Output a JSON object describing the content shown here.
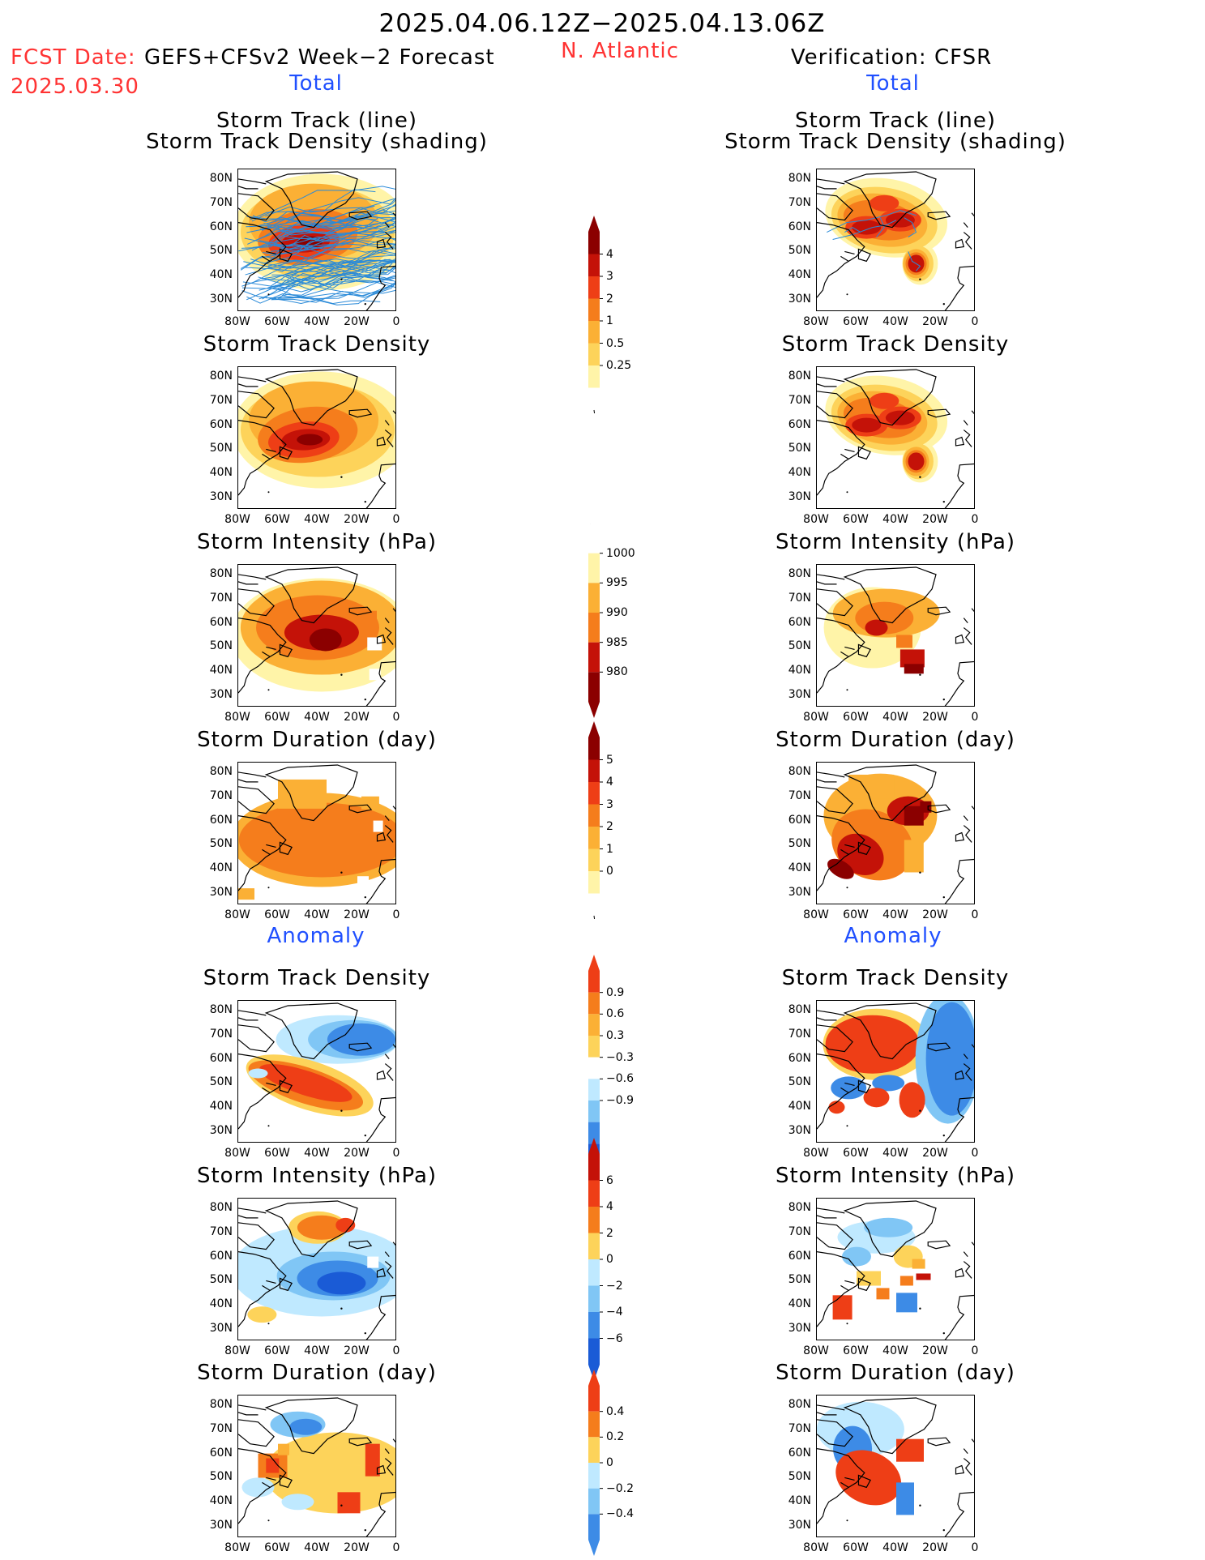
{
  "header": {
    "period": "2025.04.06.12Z−2025.04.13.06Z",
    "fcst_date_label": "FCST Date:",
    "forecast_name": "GEFS+CFSv2 Week−2 Forecast",
    "fcst_date": "2025.03.30",
    "region": "N. Atlantic",
    "verification": "Verification: CFSR",
    "left_section": "Total",
    "right_section": "Total",
    "anomaly_left": "Anomaly",
    "anomaly_right": "Anomaly"
  },
  "colors": {
    "yellow_light": "#fff4a8",
    "yellow": "#fdd35a",
    "orange_light": "#fbb035",
    "orange": "#f57d1c",
    "red_orange": "#ee3e16",
    "red": "#c41208",
    "dark_red": "#8b0000",
    "light_blue": "#bfe9ff",
    "mid_blue": "#80c6f5",
    "blue": "#3d8be6",
    "dark_blue": "#1a5bd6",
    "track_line": "#2a8ad8",
    "land_outline": "#000000"
  },
  "chart_data": [
    {
      "type": "heatmap",
      "title": "Storm Track (line)",
      "subtitle": "Storm Track Density (shading)",
      "column": "forecast",
      "section": "Total",
      "x_ticks": [
        "80W",
        "60W",
        "40W",
        "20W",
        "0"
      ],
      "y_ticks": [
        "80N",
        "70N",
        "60N",
        "50N",
        "40N",
        "30N"
      ],
      "xlim": [
        -80,
        0
      ],
      "ylim": [
        25,
        84
      ],
      "colorbar": "density",
      "pattern": "fc_density",
      "tracks": "many"
    },
    {
      "type": "heatmap",
      "title": "Storm Track Density",
      "column": "forecast",
      "section": "Total",
      "x_ticks": [
        "80W",
        "60W",
        "40W",
        "20W",
        "0"
      ],
      "y_ticks": [
        "80N",
        "70N",
        "60N",
        "50N",
        "40N",
        "30N"
      ],
      "xlim": [
        -80,
        0
      ],
      "ylim": [
        25,
        84
      ],
      "colorbar": "density",
      "pattern": "fc_density"
    },
    {
      "type": "heatmap",
      "title": "Storm Intensity (hPa)",
      "column": "forecast",
      "section": "Total",
      "x_ticks": [
        "80W",
        "60W",
        "40W",
        "20W",
        "0"
      ],
      "y_ticks": [
        "80N",
        "70N",
        "60N",
        "50N",
        "40N",
        "30N"
      ],
      "xlim": [
        -80,
        0
      ],
      "ylim": [
        25,
        84
      ],
      "colorbar": "intensity",
      "pattern": "fc_intensity"
    },
    {
      "type": "heatmap",
      "title": "Storm Duration (day)",
      "column": "forecast",
      "section": "Total",
      "x_ticks": [
        "80W",
        "60W",
        "40W",
        "20W",
        "0"
      ],
      "y_ticks": [
        "80N",
        "70N",
        "60N",
        "50N",
        "40N",
        "30N"
      ],
      "xlim": [
        -80,
        0
      ],
      "ylim": [
        25,
        84
      ],
      "colorbar": "duration",
      "pattern": "fc_duration"
    },
    {
      "type": "heatmap",
      "title": "Storm Track Density",
      "column": "forecast",
      "section": "Anomaly",
      "x_ticks": [
        "80W",
        "60W",
        "40W",
        "20W",
        "0"
      ],
      "y_ticks": [
        "80N",
        "70N",
        "60N",
        "50N",
        "40N",
        "30N"
      ],
      "xlim": [
        -80,
        0
      ],
      "ylim": [
        25,
        84
      ],
      "colorbar": "density_anom",
      "pattern": "fc_density_anom"
    },
    {
      "type": "heatmap",
      "title": "Storm Intensity (hPa)",
      "column": "forecast",
      "section": "Anomaly",
      "x_ticks": [
        "80W",
        "60W",
        "40W",
        "20W",
        "0"
      ],
      "y_ticks": [
        "80N",
        "70N",
        "60N",
        "50N",
        "40N",
        "30N"
      ],
      "xlim": [
        -80,
        0
      ],
      "ylim": [
        25,
        84
      ],
      "colorbar": "intensity_anom",
      "pattern": "fc_intensity_anom"
    },
    {
      "type": "heatmap",
      "title": "Storm Duration (day)",
      "column": "forecast",
      "section": "Anomaly",
      "x_ticks": [
        "80W",
        "60W",
        "40W",
        "20W",
        "0"
      ],
      "y_ticks": [
        "80N",
        "70N",
        "60N",
        "50N",
        "40N",
        "30N"
      ],
      "xlim": [
        -80,
        0
      ],
      "ylim": [
        25,
        84
      ],
      "colorbar": "duration_anom",
      "pattern": "fc_duration_anom"
    },
    {
      "type": "heatmap",
      "title": "Storm Track (line)",
      "subtitle": "Storm Track Density (shading)",
      "column": "verification",
      "section": "Total",
      "x_ticks": [
        "80W",
        "60W",
        "40W",
        "20W",
        "0"
      ],
      "y_ticks": [
        "80N",
        "70N",
        "60N",
        "50N",
        "40N",
        "30N"
      ],
      "xlim": [
        -80,
        0
      ],
      "ylim": [
        25,
        84
      ],
      "colorbar": "density",
      "pattern": "vf_density",
      "tracks": "few"
    },
    {
      "type": "heatmap",
      "title": "Storm Track Density",
      "column": "verification",
      "section": "Total",
      "x_ticks": [
        "80W",
        "60W",
        "40W",
        "20W",
        "0"
      ],
      "y_ticks": [
        "80N",
        "70N",
        "60N",
        "50N",
        "40N",
        "30N"
      ],
      "xlim": [
        -80,
        0
      ],
      "ylim": [
        25,
        84
      ],
      "colorbar": "density",
      "pattern": "vf_density"
    },
    {
      "type": "heatmap",
      "title": "Storm Intensity (hPa)",
      "column": "verification",
      "section": "Total",
      "x_ticks": [
        "80W",
        "60W",
        "40W",
        "20W",
        "0"
      ],
      "y_ticks": [
        "80N",
        "70N",
        "60N",
        "50N",
        "40N",
        "30N"
      ],
      "xlim": [
        -80,
        0
      ],
      "ylim": [
        25,
        84
      ],
      "colorbar": "intensity",
      "pattern": "vf_intensity"
    },
    {
      "type": "heatmap",
      "title": "Storm Duration (day)",
      "column": "verification",
      "section": "Total",
      "x_ticks": [
        "80W",
        "60W",
        "40W",
        "20W",
        "0"
      ],
      "y_ticks": [
        "80N",
        "70N",
        "60N",
        "50N",
        "40N",
        "30N"
      ],
      "xlim": [
        -80,
        0
      ],
      "ylim": [
        25,
        84
      ],
      "colorbar": "duration",
      "pattern": "vf_duration"
    },
    {
      "type": "heatmap",
      "title": "Storm Track Density",
      "column": "verification",
      "section": "Anomaly",
      "x_ticks": [
        "80W",
        "60W",
        "40W",
        "20W",
        "0"
      ],
      "y_ticks": [
        "80N",
        "70N",
        "60N",
        "50N",
        "40N",
        "30N"
      ],
      "xlim": [
        -80,
        0
      ],
      "ylim": [
        25,
        84
      ],
      "colorbar": "density_anom",
      "pattern": "vf_density_anom"
    },
    {
      "type": "heatmap",
      "title": "Storm Intensity (hPa)",
      "column": "verification",
      "section": "Anomaly",
      "x_ticks": [
        "80W",
        "60W",
        "40W",
        "20W",
        "0"
      ],
      "y_ticks": [
        "80N",
        "70N",
        "60N",
        "50N",
        "40N",
        "30N"
      ],
      "xlim": [
        -80,
        0
      ],
      "ylim": [
        25,
        84
      ],
      "colorbar": "intensity_anom",
      "pattern": "vf_intensity_anom"
    },
    {
      "type": "heatmap",
      "title": "Storm Duration (day)",
      "column": "verification",
      "section": "Anomaly",
      "x_ticks": [
        "80W",
        "60W",
        "40W",
        "20W",
        "0"
      ],
      "y_ticks": [
        "80N",
        "70N",
        "60N",
        "50N",
        "40N",
        "30N"
      ],
      "xlim": [
        -80,
        0
      ],
      "ylim": [
        25,
        84
      ],
      "colorbar": "duration_anom",
      "pattern": "vf_duration_anom"
    }
  ],
  "colorbars": {
    "density": {
      "labels": [
        "4",
        "3",
        "2",
        "1",
        "0.5",
        "0.25"
      ],
      "colors": [
        "#8b0000",
        "#c41208",
        "#ee3e16",
        "#f57d1c",
        "#fbb035",
        "#fdd35a",
        "#fff4a8",
        "#ffffff"
      ],
      "upper_arrow": true,
      "lower_arrow": false
    },
    "intensity": {
      "labels": [
        "1000",
        "995",
        "990",
        "985",
        "980"
      ],
      "colors": [
        "#ffffff",
        "#fff4a8",
        "#fbb035",
        "#f57d1c",
        "#c41208",
        "#8b0000"
      ],
      "upper_arrow": false,
      "lower_arrow": true
    },
    "duration": {
      "labels": [
        "5",
        "4",
        "3",
        "2",
        "1",
        "0"
      ],
      "colors": [
        "#8b0000",
        "#c41208",
        "#ee3e16",
        "#f57d1c",
        "#fbb035",
        "#fdd35a",
        "#fff4a8",
        "#ffffff"
      ],
      "upper_arrow": true,
      "lower_arrow": false
    },
    "density_anom": {
      "labels": [
        "0.9",
        "0.6",
        "0.3",
        "−0.3",
        "−0.6",
        "−0.9"
      ],
      "colors": [
        "#ee3e16",
        "#f57d1c",
        "#fbb035",
        "#fdd35a",
        "#ffffff",
        "#bfe9ff",
        "#80c6f5",
        "#3d8be6",
        "#1a5bd6"
      ],
      "upper_arrow": true,
      "lower_arrow": true
    },
    "intensity_anom": {
      "labels": [
        "6",
        "4",
        "2",
        "0",
        "−2",
        "−4",
        "−6"
      ],
      "colors": [
        "#c41208",
        "#ee3e16",
        "#f57d1c",
        "#fdd35a",
        "#bfe9ff",
        "#80c6f5",
        "#3d8be6",
        "#1a5bd6"
      ],
      "upper_arrow": true,
      "lower_arrow": true
    },
    "duration_anom": {
      "labels": [
        "0.4",
        "0.2",
        "0",
        "−0.2",
        "−0.4"
      ],
      "colors": [
        "#ee3e16",
        "#f57d1c",
        "#fdd35a",
        "#bfe9ff",
        "#80c6f5",
        "#3d8be6"
      ],
      "upper_arrow": true,
      "lower_arrow": true
    }
  }
}
